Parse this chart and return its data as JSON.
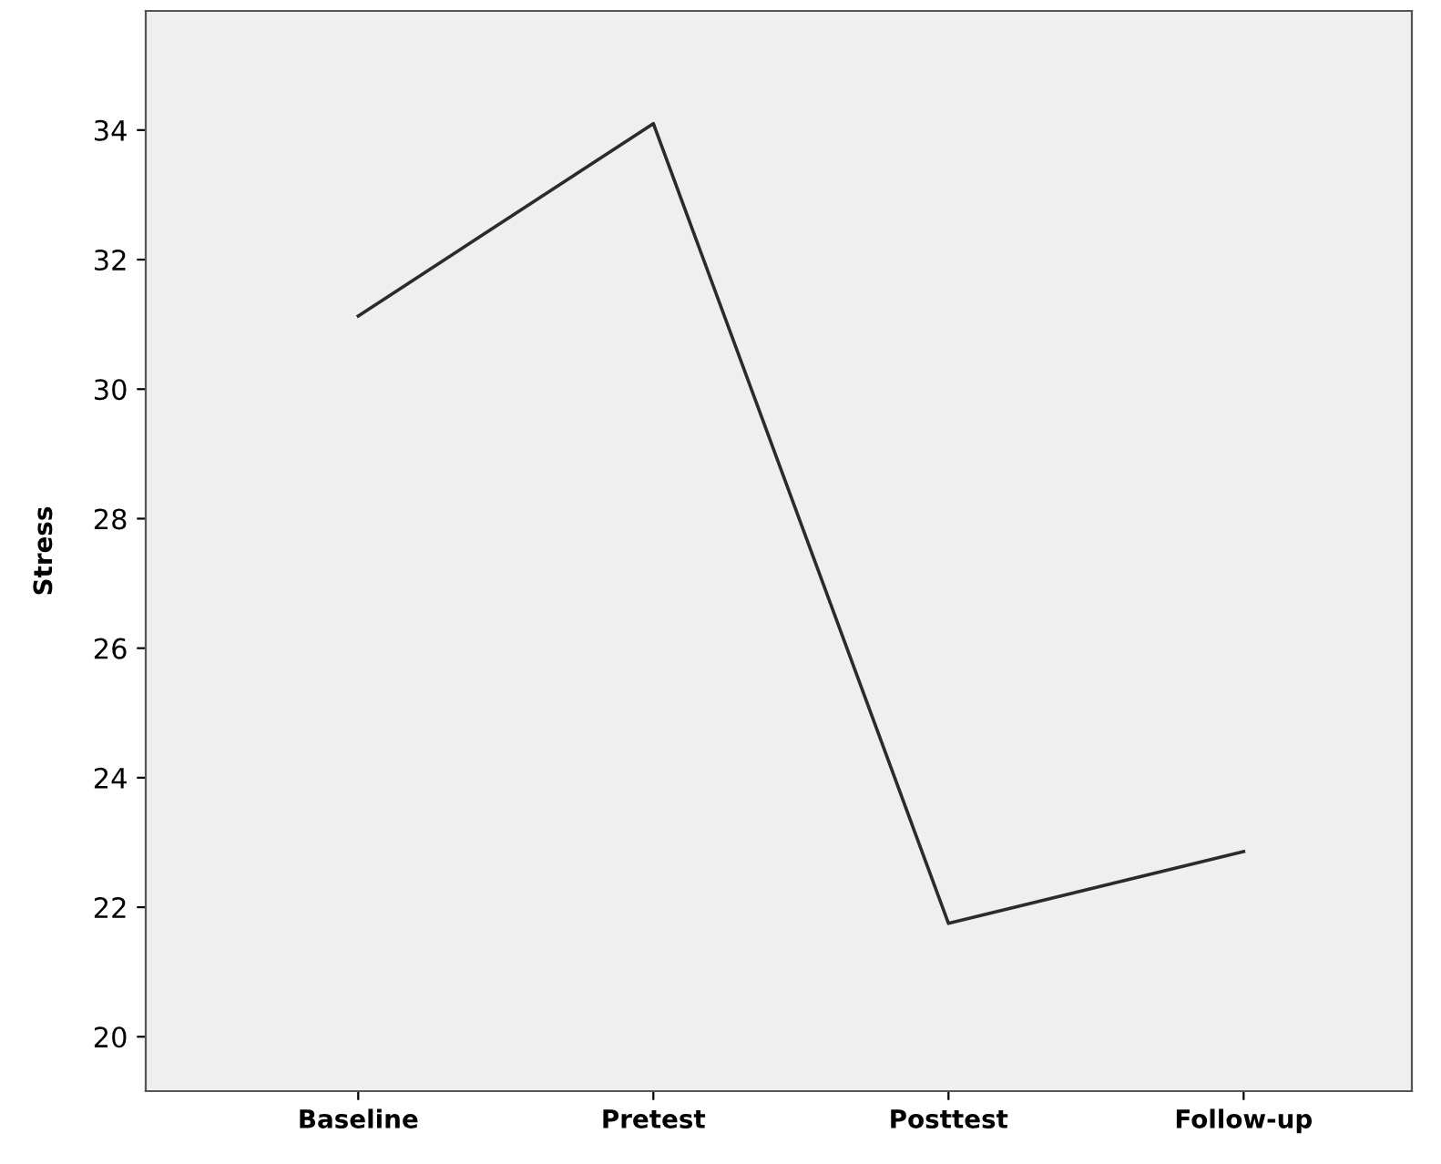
{
  "chart_data": {
    "type": "line",
    "ylabel": "Stress",
    "categories": [
      "Baseline",
      "Pretest",
      "Posttest",
      "Follow-up"
    ],
    "series": [
      {
        "color": "#2b2b2b",
        "values": [
          31.13,
          34.1,
          21.75,
          22.86
        ]
      }
    ],
    "ylim": [
      19.16,
      35.84
    ],
    "yticks": [
      20,
      22,
      24,
      26,
      28,
      30,
      32,
      34
    ],
    "marker": "none",
    "line_style": "solid"
  }
}
